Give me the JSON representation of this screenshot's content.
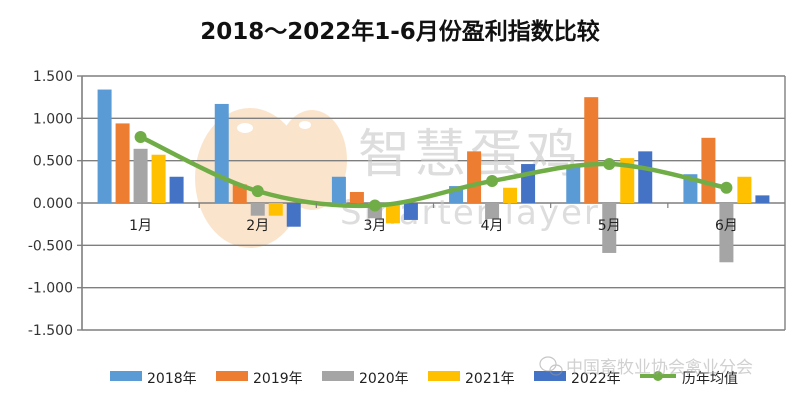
{
  "title": "2018～2022年1-6月份盈利指数比较",
  "watermarks": {
    "brand_cn": "智慧蛋鸡",
    "brand_en": "Smarter layer",
    "source": "中国畜牧业协会禽业分会",
    "source_icon": "wechat-icon"
  },
  "colors": {
    "2018": "#5b9bd5",
    "2019": "#ed7d31",
    "2020": "#a5a5a5",
    "2021": "#ffc000",
    "2022": "#4472c4",
    "avg": "#70ad47",
    "grid": "#7f7f7f"
  },
  "chart_data": {
    "type": "bar",
    "title": "2018～2022年1-6月份盈利指数比较",
    "xlabel": "",
    "ylabel": "",
    "categories": [
      "1月",
      "2月",
      "3月",
      "4月",
      "5月",
      "6月"
    ],
    "series": [
      {
        "name": "2018年",
        "type": "bar",
        "color": "#5b9bd5",
        "values": [
          1.34,
          1.17,
          0.31,
          0.2,
          0.44,
          0.34
        ]
      },
      {
        "name": "2019年",
        "type": "bar",
        "color": "#ed7d31",
        "values": [
          0.94,
          0.22,
          0.13,
          0.61,
          1.25,
          0.77
        ]
      },
      {
        "name": "2020年",
        "type": "bar",
        "color": "#a5a5a5",
        "values": [
          0.64,
          -0.15,
          -0.18,
          -0.19,
          -0.59,
          -0.7
        ]
      },
      {
        "name": "2021年",
        "type": "bar",
        "color": "#ffc000",
        "values": [
          0.57,
          -0.15,
          -0.24,
          0.18,
          0.53,
          0.31
        ]
      },
      {
        "name": "2022年",
        "type": "bar",
        "color": "#4472c4",
        "values": [
          0.31,
          -0.28,
          -0.2,
          0.46,
          0.61,
          0.09
        ]
      },
      {
        "name": "历年均值",
        "type": "line",
        "color": "#70ad47",
        "values": [
          0.78,
          0.14,
          -0.03,
          0.26,
          0.46,
          0.18
        ]
      }
    ],
    "yticks": [
      "1.500",
      "1.000",
      "0.500",
      "0.000",
      "-0.500",
      "-1.000",
      "-1.500"
    ],
    "ylim": [
      -1.5,
      1.5
    ],
    "grid": true,
    "legend_position": "bottom"
  }
}
